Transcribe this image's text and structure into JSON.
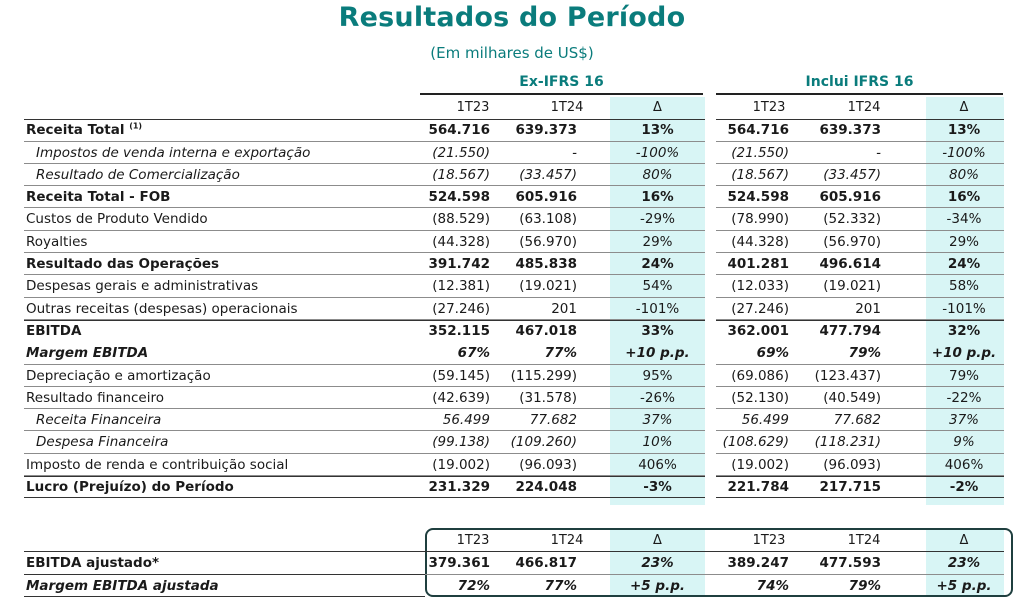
{
  "title": "Resultados do Período",
  "subtitle": "(Em milhares de US$)",
  "groups": {
    "ex": "Ex-IFRS 16",
    "inc": "Inclui IFRS 16"
  },
  "headers": [
    "1T23",
    "1T24",
    "Δ",
    "1T23",
    "1T24",
    "Δ"
  ],
  "rows": [
    {
      "label": "Receita Total",
      "sup": "(1)",
      "v": [
        "564.716",
        "639.373",
        "13%",
        "564.716",
        "639.373",
        "13%"
      ]
    },
    {
      "label": "Impostos de venda interna e exportação",
      "v": [
        "(21.550)",
        "-",
        "-100%",
        "(21.550)",
        "-",
        "-100%"
      ]
    },
    {
      "label": "Resultado de Comercialização",
      "v": [
        "(18.567)",
        "(33.457)",
        "80%",
        "(18.567)",
        "(33.457)",
        "80%"
      ]
    },
    {
      "label": "Receita Total - FOB",
      "v": [
        "524.598",
        "605.916",
        "16%",
        "524.598",
        "605.916",
        "16%"
      ]
    },
    {
      "label": "Custos de Produto Vendido",
      "v": [
        "(88.529)",
        "(63.108)",
        "-29%",
        "(78.990)",
        "(52.332)",
        "-34%"
      ]
    },
    {
      "label": "Royalties",
      "v": [
        "(44.328)",
        "(56.970)",
        "29%",
        "(44.328)",
        "(56.970)",
        "29%"
      ]
    },
    {
      "label": "Resultado das Operações",
      "v": [
        "391.742",
        "485.838",
        "24%",
        "401.281",
        "496.614",
        "24%"
      ]
    },
    {
      "label": "Despesas gerais e administrativas",
      "v": [
        "(12.381)",
        "(19.021)",
        "54%",
        "(12.033)",
        "(19.021)",
        "58%"
      ]
    },
    {
      "label": "Outras receitas (despesas) operacionais",
      "v": [
        "(27.246)",
        "201",
        "-101%",
        "(27.246)",
        "201",
        "-101%"
      ]
    },
    {
      "label": "EBITDA",
      "v": [
        "352.115",
        "467.018",
        "33%",
        "362.001",
        "477.794",
        "32%"
      ]
    },
    {
      "label": "Margem EBITDA",
      "v": [
        "67%",
        "77%",
        "+10 p.p.",
        "69%",
        "79%",
        "+10 p.p."
      ]
    },
    {
      "label": "Depreciação e amortização",
      "v": [
        "(59.145)",
        "(115.299)",
        "95%",
        "(69.086)",
        "(123.437)",
        "79%"
      ]
    },
    {
      "label": "Resultado financeiro",
      "v": [
        "(42.639)",
        "(31.578)",
        "-26%",
        "(52.130)",
        "(40.549)",
        "-22%"
      ]
    },
    {
      "label": "Receita Financeira",
      "v": [
        "56.499",
        "77.682",
        "37%",
        "56.499",
        "77.682",
        "37%"
      ]
    },
    {
      "label": "Despesa Financeira",
      "v": [
        "(99.138)",
        "(109.260)",
        "10%",
        "(108.629)",
        "(118.231)",
        "9%"
      ]
    },
    {
      "label": "Imposto de renda e contribuição social",
      "v": [
        "(19.002)",
        "(96.093)",
        "406%",
        "(19.002)",
        "(96.093)",
        "406%"
      ]
    },
    {
      "label": "Lucro (Prejuízo) do Período",
      "v": [
        "231.329",
        "224.048",
        "-3%",
        "221.784",
        "217.715",
        "-2%"
      ]
    }
  ],
  "adjusted": {
    "headers": [
      "1T23",
      "1T24",
      "Δ",
      "1T23",
      "1T24",
      "Δ"
    ],
    "rows": [
      {
        "label": "EBITDA ajustado*",
        "v": [
          "379.361",
          "466.817",
          "23%",
          "389.247",
          "477.593",
          "23%"
        ]
      },
      {
        "label": "Margem EBITDA ajustada",
        "v": [
          "72%",
          "77%",
          "+5 p.p.",
          "74%",
          "79%",
          "+5 p.p."
        ]
      }
    ]
  }
}
